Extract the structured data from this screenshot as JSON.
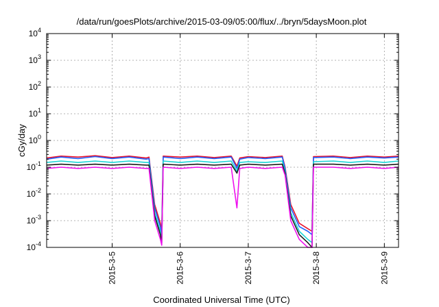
{
  "chart_data": {
    "type": "line",
    "title": "/data/run/goesPlots/archive/2015-03-09/05:00/flux/../bryn/5daysMoon.plot",
    "xlabel": "Coordinated Universal Time (UTC)",
    "ylabel": "cGy/day",
    "xlim": [
      "2015-03-04T00:54",
      "2015-03-09T05:00"
    ],
    "ylim": [
      0.0001,
      10000
    ],
    "yscale": "log",
    "grid": true,
    "legend": "none",
    "x_ticks": [
      {
        "date": "2015-03-05T00:00",
        "label": "2015-3-5"
      },
      {
        "date": "2015-03-06T00:00",
        "label": "2015-3-6"
      },
      {
        "date": "2015-03-07T00:00",
        "label": "2015-3-7"
      },
      {
        "date": "2015-03-08T00:00",
        "label": "2015-3-8"
      },
      {
        "date": "2015-03-09T00:00",
        "label": "2015-3-9"
      }
    ],
    "y_ticks": [
      {
        "value": 0.0001,
        "base": "10",
        "exp": "-4"
      },
      {
        "value": 0.001,
        "base": "10",
        "exp": "-3"
      },
      {
        "value": 0.01,
        "base": "10",
        "exp": "-2"
      },
      {
        "value": 0.1,
        "base": "10",
        "exp": "-1"
      },
      {
        "value": 1,
        "base": "10",
        "exp": "0"
      },
      {
        "value": 10,
        "base": "10",
        "exp": "1"
      },
      {
        "value": 100,
        "base": "10",
        "exp": "2"
      },
      {
        "value": 1000,
        "base": "10",
        "exp": "3"
      },
      {
        "value": 10000,
        "base": "10",
        "exp": "4"
      }
    ],
    "series": [
      {
        "color": "#e8102a",
        "values": [
          [
            "2015-03-04T00:54",
            0.22
          ],
          [
            "2015-03-04T06:00",
            0.26
          ],
          [
            "2015-03-04T12:00",
            0.24
          ],
          [
            "2015-03-04T18:00",
            0.27
          ],
          [
            "2015-03-05T00:00",
            0.23
          ],
          [
            "2015-03-05T06:00",
            0.26
          ],
          [
            "2015-03-05T12:00",
            0.22
          ],
          [
            "2015-03-05T13:00",
            0.24
          ],
          [
            "2015-03-05T15:00",
            0.004
          ],
          [
            "2015-03-05T17:00",
            0.0008
          ],
          [
            "2015-03-05T17:30",
            0.0004
          ],
          [
            "2015-03-05T18:00",
            0.26
          ],
          [
            "2015-03-06T00:00",
            0.24
          ],
          [
            "2015-03-06T06:00",
            0.26
          ],
          [
            "2015-03-06T12:00",
            0.23
          ],
          [
            "2015-03-06T18:00",
            0.26
          ],
          [
            "2015-03-06T20:00",
            0.11
          ],
          [
            "2015-03-06T21:00",
            0.22
          ],
          [
            "2015-03-07T00:00",
            0.25
          ],
          [
            "2015-03-07T06:00",
            0.23
          ],
          [
            "2015-03-07T12:00",
            0.26
          ],
          [
            "2015-03-07T13:00",
            0.1
          ],
          [
            "2015-03-07T15:00",
            0.004
          ],
          [
            "2015-03-07T18:00",
            0.0008
          ],
          [
            "2015-03-07T21:00",
            0.0005
          ],
          [
            "2015-03-07T22:30",
            0.0004
          ],
          [
            "2015-03-07T23:00",
            0.25
          ],
          [
            "2015-03-08T06:00",
            0.26
          ],
          [
            "2015-03-08T12:00",
            0.23
          ],
          [
            "2015-03-08T18:00",
            0.26
          ],
          [
            "2015-03-09T00:00",
            0.24
          ],
          [
            "2015-03-09T05:00",
            0.26
          ]
        ]
      },
      {
        "color": "#2060ff",
        "values": [
          [
            "2015-03-04T00:54",
            0.2
          ],
          [
            "2015-03-04T06:00",
            0.24
          ],
          [
            "2015-03-04T12:00",
            0.21
          ],
          [
            "2015-03-04T18:00",
            0.25
          ],
          [
            "2015-03-05T00:00",
            0.21
          ],
          [
            "2015-03-05T06:00",
            0.24
          ],
          [
            "2015-03-05T12:00",
            0.2
          ],
          [
            "2015-03-05T13:00",
            0.21
          ],
          [
            "2015-03-05T15:00",
            0.003
          ],
          [
            "2015-03-05T17:00",
            0.0006
          ],
          [
            "2015-03-05T17:30",
            0.0003
          ],
          [
            "2015-03-05T18:00",
            0.24
          ],
          [
            "2015-03-06T00:00",
            0.21
          ],
          [
            "2015-03-06T06:00",
            0.24
          ],
          [
            "2015-03-06T12:00",
            0.21
          ],
          [
            "2015-03-06T18:00",
            0.24
          ],
          [
            "2015-03-06T20:00",
            0.09
          ],
          [
            "2015-03-06T21:00",
            0.2
          ],
          [
            "2015-03-07T00:00",
            0.23
          ],
          [
            "2015-03-07T06:00",
            0.21
          ],
          [
            "2015-03-07T12:00",
            0.24
          ],
          [
            "2015-03-07T13:00",
            0.09
          ],
          [
            "2015-03-07T15:00",
            0.003
          ],
          [
            "2015-03-07T18:00",
            0.0006
          ],
          [
            "2015-03-07T21:00",
            0.0004
          ],
          [
            "2015-03-07T22:30",
            0.0003
          ],
          [
            "2015-03-07T23:00",
            0.23
          ],
          [
            "2015-03-08T06:00",
            0.24
          ],
          [
            "2015-03-08T12:00",
            0.21
          ],
          [
            "2015-03-08T18:00",
            0.24
          ],
          [
            "2015-03-09T00:00",
            0.22
          ],
          [
            "2015-03-09T05:00",
            0.24
          ]
        ]
      },
      {
        "color": "#19d4d4",
        "values": [
          [
            "2015-03-04T00:54",
            0.15
          ],
          [
            "2015-03-04T06:00",
            0.17
          ],
          [
            "2015-03-04T12:00",
            0.15
          ],
          [
            "2015-03-04T18:00",
            0.17
          ],
          [
            "2015-03-05T00:00",
            0.15
          ],
          [
            "2015-03-05T06:00",
            0.17
          ],
          [
            "2015-03-05T12:00",
            0.15
          ],
          [
            "2015-03-05T13:00",
            0.15
          ],
          [
            "2015-03-05T15:00",
            0.002
          ],
          [
            "2015-03-05T17:00",
            0.0004
          ],
          [
            "2015-03-05T17:30",
            0.0002
          ],
          [
            "2015-03-05T18:00",
            0.17
          ],
          [
            "2015-03-06T00:00",
            0.15
          ],
          [
            "2015-03-06T06:00",
            0.17
          ],
          [
            "2015-03-06T12:00",
            0.15
          ],
          [
            "2015-03-06T18:00",
            0.17
          ],
          [
            "2015-03-06T20:00",
            0.07
          ],
          [
            "2015-03-06T21:00",
            0.15
          ],
          [
            "2015-03-07T00:00",
            0.16
          ],
          [
            "2015-03-07T06:00",
            0.15
          ],
          [
            "2015-03-07T12:00",
            0.17
          ],
          [
            "2015-03-07T13:00",
            0.07
          ],
          [
            "2015-03-07T15:00",
            0.002
          ],
          [
            "2015-03-07T18:00",
            0.0004
          ],
          [
            "2015-03-07T21:00",
            0.0002
          ],
          [
            "2015-03-07T22:30",
            0.00015
          ],
          [
            "2015-03-07T23:00",
            0.16
          ],
          [
            "2015-03-08T06:00",
            0.17
          ],
          [
            "2015-03-08T12:00",
            0.15
          ],
          [
            "2015-03-08T18:00",
            0.17
          ],
          [
            "2015-03-09T00:00",
            0.15
          ],
          [
            "2015-03-09T05:00",
            0.17
          ]
        ]
      },
      {
        "color": "#1a1a1a",
        "values": [
          [
            "2015-03-04T00:54",
            0.12
          ],
          [
            "2015-03-04T06:00",
            0.13
          ],
          [
            "2015-03-04T12:00",
            0.12
          ],
          [
            "2015-03-04T18:00",
            0.13
          ],
          [
            "2015-03-05T00:00",
            0.12
          ],
          [
            "2015-03-05T06:00",
            0.13
          ],
          [
            "2015-03-05T12:00",
            0.12
          ],
          [
            "2015-03-05T13:00",
            0.12
          ],
          [
            "2015-03-05T15:00",
            0.0015
          ],
          [
            "2015-03-05T17:00",
            0.0003
          ],
          [
            "2015-03-05T17:30",
            0.00015
          ],
          [
            "2015-03-05T18:00",
            0.13
          ],
          [
            "2015-03-06T00:00",
            0.12
          ],
          [
            "2015-03-06T06:00",
            0.13
          ],
          [
            "2015-03-06T12:00",
            0.12
          ],
          [
            "2015-03-06T18:00",
            0.13
          ],
          [
            "2015-03-06T20:00",
            0.06
          ],
          [
            "2015-03-06T21:00",
            0.12
          ],
          [
            "2015-03-07T00:00",
            0.13
          ],
          [
            "2015-03-07T06:00",
            0.12
          ],
          [
            "2015-03-07T12:00",
            0.13
          ],
          [
            "2015-03-07T13:00",
            0.06
          ],
          [
            "2015-03-07T15:00",
            0.0015
          ],
          [
            "2015-03-07T18:00",
            0.0003
          ],
          [
            "2015-03-07T21:00",
            0.00015
          ],
          [
            "2015-03-07T22:30",
            0.0001
          ],
          [
            "2015-03-07T23:00",
            0.13
          ],
          [
            "2015-03-08T06:00",
            0.13
          ],
          [
            "2015-03-08T12:00",
            0.12
          ],
          [
            "2015-03-08T18:00",
            0.13
          ],
          [
            "2015-03-09T00:00",
            0.12
          ],
          [
            "2015-03-09T05:00",
            0.13
          ]
        ]
      },
      {
        "color": "#ee10ee",
        "values": [
          [
            "2015-03-04T00:54",
            0.09
          ],
          [
            "2015-03-04T06:00",
            0.1
          ],
          [
            "2015-03-04T12:00",
            0.09
          ],
          [
            "2015-03-04T18:00",
            0.1
          ],
          [
            "2015-03-05T00:00",
            0.09
          ],
          [
            "2015-03-05T06:00",
            0.1
          ],
          [
            "2015-03-05T12:00",
            0.09
          ],
          [
            "2015-03-05T13:00",
            0.09
          ],
          [
            "2015-03-05T15:00",
            0.001
          ],
          [
            "2015-03-05T17:00",
            0.0002
          ],
          [
            "2015-03-05T17:30",
            0.00012
          ],
          [
            "2015-03-05T18:00",
            0.1
          ],
          [
            "2015-03-06T00:00",
            0.09
          ],
          [
            "2015-03-06T06:00",
            0.1
          ],
          [
            "2015-03-06T12:00",
            0.09
          ],
          [
            "2015-03-06T18:00",
            0.1
          ],
          [
            "2015-03-06T20:00",
            0.003
          ],
          [
            "2015-03-06T21:00",
            0.09
          ],
          [
            "2015-03-07T00:00",
            0.1
          ],
          [
            "2015-03-07T06:00",
            0.09
          ],
          [
            "2015-03-07T12:00",
            0.1
          ],
          [
            "2015-03-07T13:00",
            0.05
          ],
          [
            "2015-03-07T15:00",
            0.001
          ],
          [
            "2015-03-07T18:00",
            0.0002
          ],
          [
            "2015-03-07T21:00",
            0.0001
          ],
          [
            "2015-03-07T22:30",
            0.0001
          ],
          [
            "2015-03-07T23:00",
            0.1
          ],
          [
            "2015-03-08T06:00",
            0.1
          ],
          [
            "2015-03-08T12:00",
            0.09
          ],
          [
            "2015-03-08T18:00",
            0.1
          ],
          [
            "2015-03-09T00:00",
            0.09
          ],
          [
            "2015-03-09T05:00",
            0.1
          ]
        ]
      }
    ]
  }
}
